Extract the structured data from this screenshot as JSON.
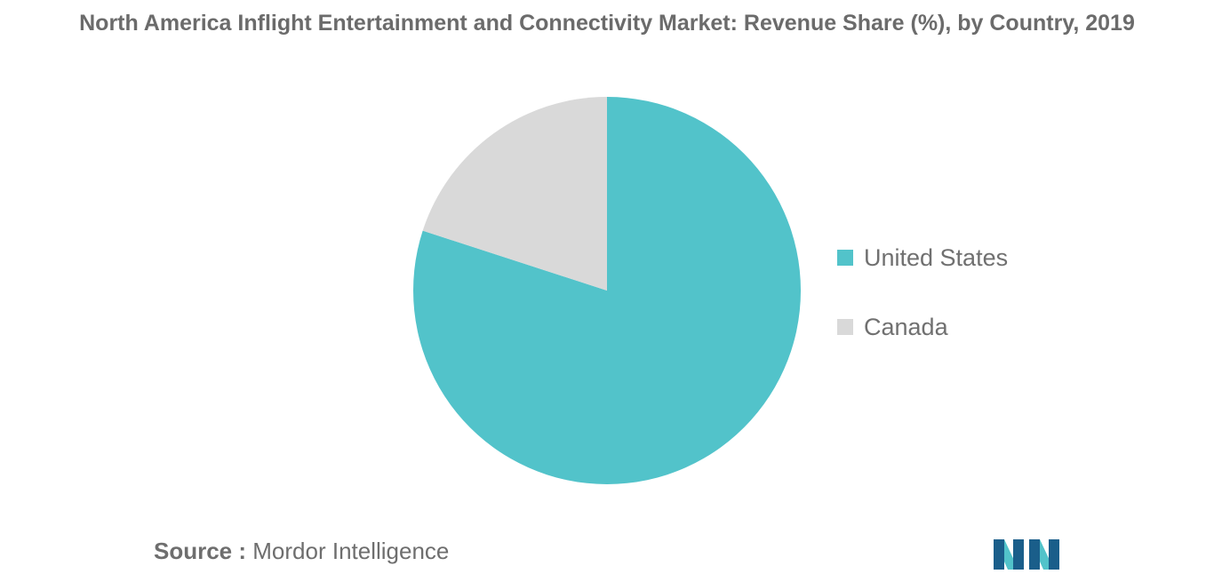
{
  "chart_data": {
    "type": "pie",
    "title": "North America Inflight Entertainment and Connectivity Market: Revenue Share (%), by Country, 2019",
    "slices": [
      {
        "label": "United States",
        "value": 80,
        "color": "#52c3ca"
      },
      {
        "label": "Canada",
        "value": 20,
        "color": "#d9d9d9"
      }
    ],
    "start_angle_deg": 0,
    "direction": "clockwise",
    "legend_position": "right"
  },
  "source": {
    "label": "Source :",
    "text": "Mordor Intelligence"
  },
  "logo": {
    "name": "mordor-intelligence-logo",
    "colors": [
      "#1a5e8a",
      "#52c3ca"
    ]
  }
}
